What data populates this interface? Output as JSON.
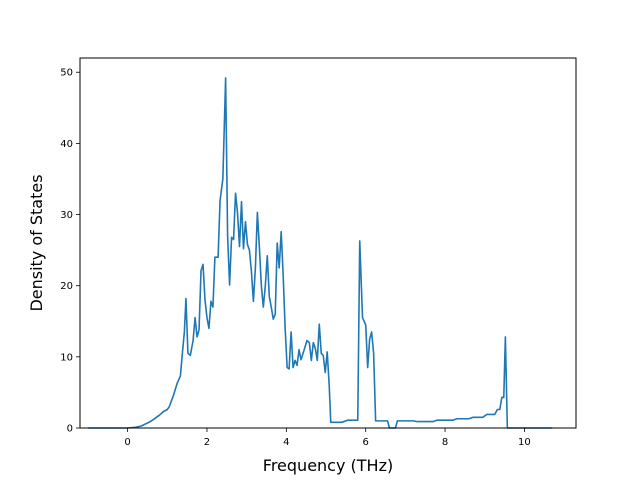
{
  "chart_data": {
    "type": "line",
    "title": "",
    "xlabel": "Frequency (THz)",
    "ylabel": "Density of States",
    "xlim": [
      -1.2,
      11.3
    ],
    "ylim": [
      0,
      52
    ],
    "xticks": [
      0,
      2,
      4,
      6,
      8,
      10
    ],
    "yticks": [
      0,
      10,
      20,
      30,
      40,
      50
    ],
    "grid": false,
    "legend": "none",
    "series": [
      {
        "color": "#1f77b4",
        "points": [
          [
            -1.0,
            0
          ],
          [
            0.0,
            0
          ],
          [
            0.2,
            0.1
          ],
          [
            0.35,
            0.3
          ],
          [
            0.5,
            0.7
          ],
          [
            0.6,
            1.0
          ],
          [
            0.7,
            1.4
          ],
          [
            0.8,
            1.8
          ],
          [
            0.9,
            2.3
          ],
          [
            1.0,
            2.6
          ],
          [
            1.05,
            3.0
          ],
          [
            1.15,
            4.5
          ],
          [
            1.25,
            6.3
          ],
          [
            1.33,
            7.3
          ],
          [
            1.38,
            10.5
          ],
          [
            1.43,
            13.5
          ],
          [
            1.47,
            18.2
          ],
          [
            1.52,
            10.5
          ],
          [
            1.58,
            10.2
          ],
          [
            1.65,
            12.3
          ],
          [
            1.7,
            15.5
          ],
          [
            1.75,
            12.8
          ],
          [
            1.8,
            13.8
          ],
          [
            1.85,
            22.1
          ],
          [
            1.9,
            23.0
          ],
          [
            1.95,
            18.0
          ],
          [
            2.0,
            15.5
          ],
          [
            2.05,
            14.0
          ],
          [
            2.1,
            17.8
          ],
          [
            2.15,
            17.0
          ],
          [
            2.2,
            24.0
          ],
          [
            2.28,
            24.0
          ],
          [
            2.33,
            32.0
          ],
          [
            2.4,
            35.0
          ],
          [
            2.47,
            49.2
          ],
          [
            2.52,
            27.0
          ],
          [
            2.57,
            20.1
          ],
          [
            2.62,
            26.8
          ],
          [
            2.67,
            26.5
          ],
          [
            2.72,
            33.0
          ],
          [
            2.77,
            30.2
          ],
          [
            2.82,
            25.5
          ],
          [
            2.87,
            31.8
          ],
          [
            2.92,
            25.2
          ],
          [
            2.97,
            29.0
          ],
          [
            3.02,
            25.8
          ],
          [
            3.07,
            25.0
          ],
          [
            3.12,
            22.0
          ],
          [
            3.17,
            17.8
          ],
          [
            3.22,
            22.5
          ],
          [
            3.27,
            30.3
          ],
          [
            3.32,
            25.5
          ],
          [
            3.37,
            20.0
          ],
          [
            3.42,
            17.0
          ],
          [
            3.47,
            20.0
          ],
          [
            3.52,
            24.2
          ],
          [
            3.57,
            18.5
          ],
          [
            3.62,
            17.0
          ],
          [
            3.67,
            15.3
          ],
          [
            3.72,
            16.0
          ],
          [
            3.77,
            26.0
          ],
          [
            3.82,
            22.5
          ],
          [
            3.87,
            27.6
          ],
          [
            3.92,
            21.5
          ],
          [
            3.97,
            14.0
          ],
          [
            4.02,
            8.5
          ],
          [
            4.07,
            8.3
          ],
          [
            4.12,
            13.5
          ],
          [
            4.17,
            8.5
          ],
          [
            4.22,
            9.5
          ],
          [
            4.27,
            8.8
          ],
          [
            4.32,
            11.0
          ],
          [
            4.37,
            9.6
          ],
          [
            4.45,
            11.0
          ],
          [
            4.52,
            12.3
          ],
          [
            4.58,
            12.0
          ],
          [
            4.63,
            9.5
          ],
          [
            4.68,
            12.0
          ],
          [
            4.73,
            11.2
          ],
          [
            4.78,
            9.5
          ],
          [
            4.83,
            14.6
          ],
          [
            4.88,
            10.5
          ],
          [
            4.93,
            10.2
          ],
          [
            4.98,
            7.8
          ],
          [
            5.03,
            10.7
          ],
          [
            5.08,
            6.0
          ],
          [
            5.12,
            0.8
          ],
          [
            5.4,
            0.8
          ],
          [
            5.55,
            1.1
          ],
          [
            5.8,
            1.1
          ],
          [
            5.85,
            26.3
          ],
          [
            5.92,
            15.5
          ],
          [
            6.0,
            14.5
          ],
          [
            6.05,
            8.5
          ],
          [
            6.1,
            12.5
          ],
          [
            6.15,
            13.5
          ],
          [
            6.2,
            10.5
          ],
          [
            6.25,
            1.0
          ],
          [
            6.55,
            1.0
          ],
          [
            6.6,
            0
          ],
          [
            6.75,
            0
          ],
          [
            6.8,
            1.0
          ],
          [
            7.2,
            1.0
          ],
          [
            7.3,
            0.9
          ],
          [
            7.7,
            0.9
          ],
          [
            7.8,
            1.1
          ],
          [
            8.2,
            1.1
          ],
          [
            8.3,
            1.3
          ],
          [
            8.6,
            1.3
          ],
          [
            8.7,
            1.5
          ],
          [
            8.95,
            1.5
          ],
          [
            9.05,
            1.9
          ],
          [
            9.25,
            1.9
          ],
          [
            9.32,
            2.6
          ],
          [
            9.38,
            2.6
          ],
          [
            9.43,
            4.3
          ],
          [
            9.48,
            4.3
          ],
          [
            9.52,
            12.8
          ],
          [
            9.57,
            0
          ],
          [
            10.0,
            0
          ],
          [
            10.7,
            0
          ]
        ]
      }
    ]
  }
}
